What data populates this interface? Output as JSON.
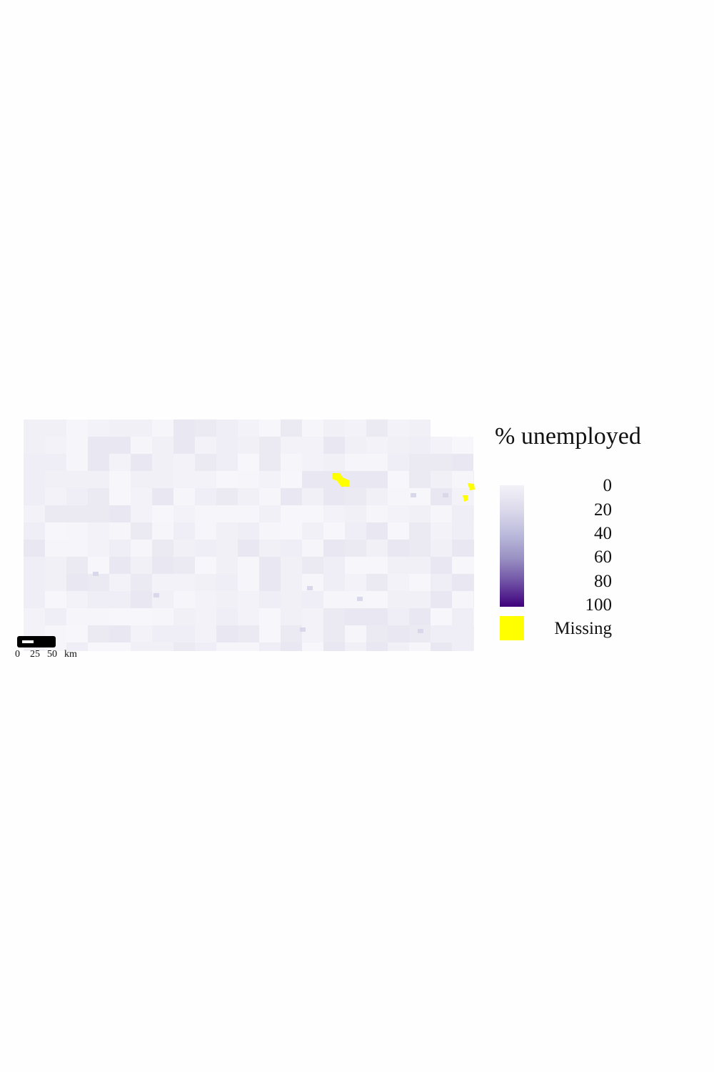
{
  "legend": {
    "title": "% unemployed",
    "ticks": [
      "0",
      "20",
      "40",
      "60",
      "80",
      "100"
    ],
    "missing_label": "Missing",
    "colors": {
      "low": "#f3f2f8",
      "high": "#3f007d",
      "missing": "#ffff00"
    }
  },
  "scale_bar": {
    "labels": [
      "0",
      "25",
      "50",
      "km"
    ]
  }
}
